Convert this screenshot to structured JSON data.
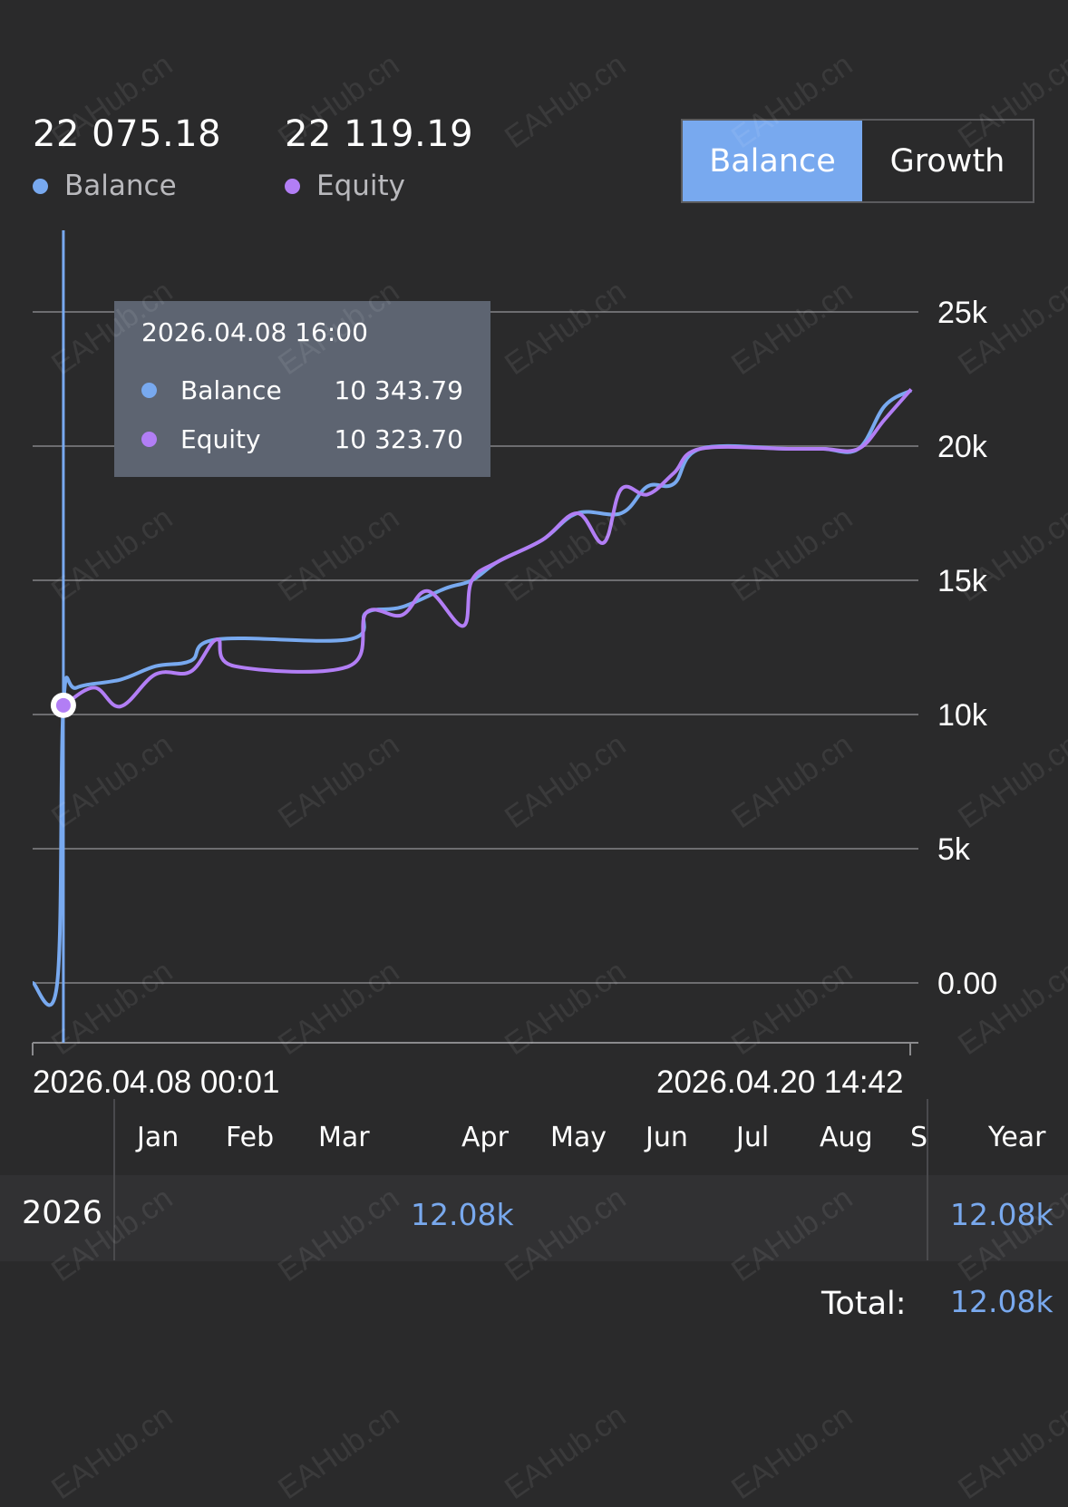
{
  "header": {
    "balance": {
      "value": "22 075.18",
      "label": "Balance"
    },
    "equity": {
      "value": "22 119.19",
      "label": "Equity"
    }
  },
  "toggle": {
    "balance_label": "Balance",
    "growth_label": "Growth"
  },
  "colors": {
    "balance": "#78a9ef",
    "equity": "#b27ef5",
    "background": "#2a2a2b",
    "tooltip": "#5d6471"
  },
  "tooltip": {
    "time": "2026.04.08 16:00",
    "balance_label": "Balance",
    "balance_value": "10 343.79",
    "equity_label": "Equity",
    "equity_value": "10 323.70"
  },
  "chart_data": {
    "type": "line",
    "x_start_label": "2026.04.08 00:01",
    "x_end_label": "2026.04.20 14:42",
    "y_tick_labels": [
      "25k",
      "20k",
      "15k",
      "10k",
      "5k",
      "0.00"
    ],
    "ylim": [
      -2200,
      26000
    ],
    "grid": true,
    "cursor_x": 0.035,
    "series": [
      {
        "name": "Balance",
        "x": [
          0,
          0.028,
          0.035,
          0.05,
          0.1,
          0.14,
          0.18,
          0.21,
          0.36,
          0.38,
          0.42,
          0.47,
          0.5,
          0.53,
          0.58,
          0.62,
          0.67,
          0.7,
          0.73,
          0.76,
          0.86,
          0.9,
          0.94,
          0.97,
          1.0
        ],
        "values": [
          0,
          0,
          10343.79,
          11000,
          11300,
          11800,
          12000,
          12800,
          12800,
          13800,
          14000,
          14700,
          15000,
          15700,
          16500,
          17500,
          17500,
          18500,
          18600,
          19900,
          19900,
          19900,
          19900,
          21500,
          22075.18
        ]
      },
      {
        "name": "Equity",
        "x": [
          0.035,
          0.07,
          0.1,
          0.14,
          0.18,
          0.21,
          0.23,
          0.36,
          0.38,
          0.42,
          0.45,
          0.49,
          0.5,
          0.53,
          0.58,
          0.62,
          0.65,
          0.67,
          0.7,
          0.73,
          0.76,
          0.86,
          0.9,
          0.94,
          0.97,
          1.0
        ],
        "values": [
          10323.7,
          11000,
          10300,
          11500,
          11600,
          12800,
          11800,
          11800,
          13800,
          13700,
          14600,
          13300,
          15000,
          15700,
          16500,
          17500,
          16400,
          18400,
          18200,
          19000,
          19900,
          19900,
          19900,
          19900,
          21000,
          22119.19
        ]
      }
    ]
  },
  "table": {
    "months": [
      "Jan",
      "Feb",
      "Mar",
      "Apr",
      "May",
      "Jun",
      "Jul",
      "Aug",
      "S"
    ],
    "year_header": "Year",
    "rows": [
      {
        "year": "2026",
        "apr_value": "12.08k",
        "year_value": "12.08k"
      }
    ],
    "total_label": "Total:",
    "total_value": "12.08k"
  },
  "watermark": "EAHub.cn"
}
